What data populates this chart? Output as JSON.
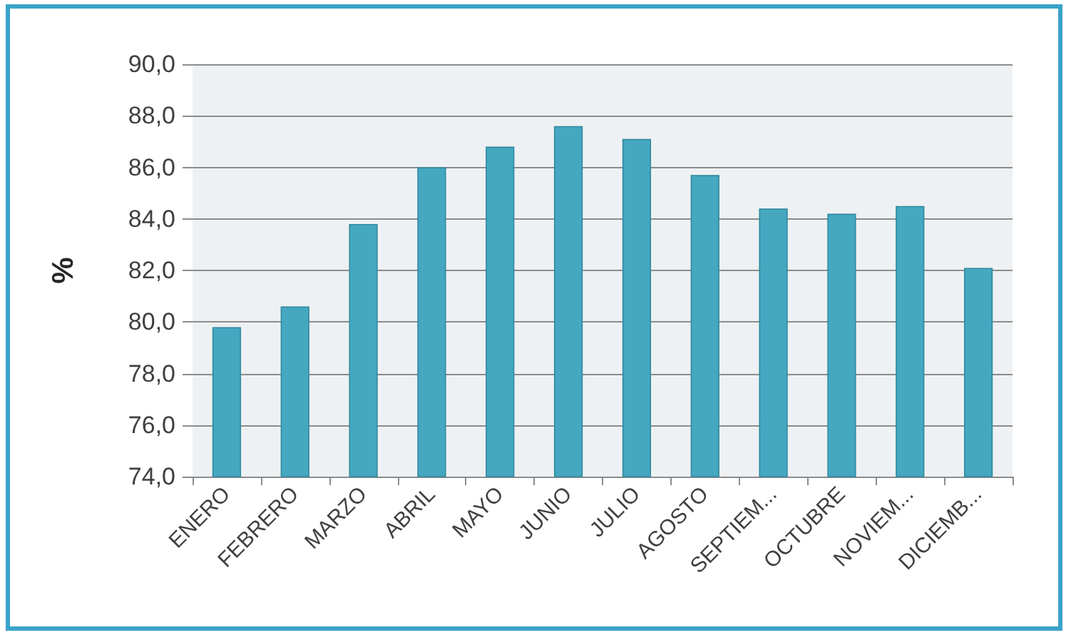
{
  "chart_data": {
    "type": "bar",
    "ylabel": "%",
    "categories": [
      "ENERO",
      "FEBRERO",
      "MARZO",
      "ABRIL",
      "MAYO",
      "JUNIO",
      "JULIO",
      "AGOSTO",
      "SEPTIEM...",
      "OCTUBRE",
      "NOVIEM...",
      "DICIEMB..."
    ],
    "values": [
      79.8,
      80.6,
      83.8,
      86.0,
      86.8,
      87.6,
      87.1,
      85.7,
      84.4,
      84.2,
      84.5,
      82.1
    ],
    "color": "#45a7c0",
    "ylim": [
      74,
      90
    ],
    "yticks": [
      {
        "value": 74,
        "label": "74,0"
      },
      {
        "value": 76,
        "label": "76,0"
      },
      {
        "value": 78,
        "label": "78,0"
      },
      {
        "value": 80,
        "label": "80,0"
      },
      {
        "value": 82,
        "label": "82,0"
      },
      {
        "value": 84,
        "label": "84,0"
      },
      {
        "value": 86,
        "label": "86,0"
      },
      {
        "value": 88,
        "label": "88,0"
      },
      {
        "value": 90,
        "label": "90,0"
      }
    ],
    "grid": "y"
  }
}
